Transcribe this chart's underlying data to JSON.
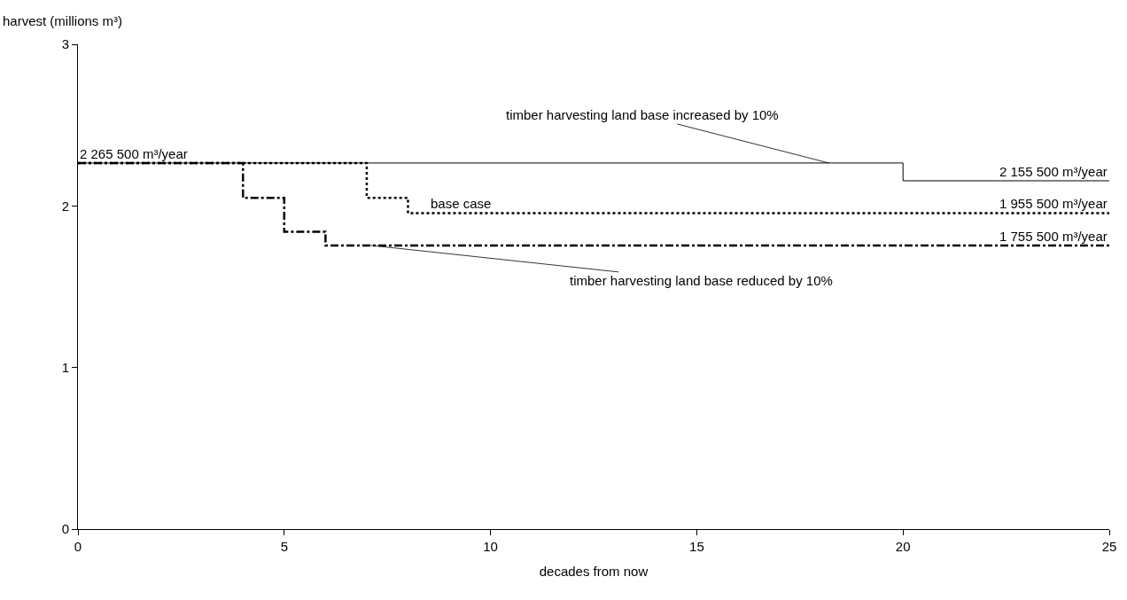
{
  "chart_data": {
    "type": "step",
    "xlabel": "decades from now",
    "ylabel": "harvest (millions m³)",
    "xlim": [
      0,
      25
    ],
    "xticks": [
      0,
      5,
      10,
      15,
      20,
      25
    ],
    "ylim": [
      0,
      3
    ],
    "yticks": [
      0,
      1,
      2,
      3
    ],
    "marker": "none",
    "series": [
      {
        "color": "#000000",
        "line_style": "solid",
        "x": [
          0,
          20,
          25
        ],
        "values": [
          2.2655,
          2.1555,
          2.1555
        ]
      },
      {
        "color": "#000000",
        "line_style": "dotted",
        "x": [
          0,
          7,
          8,
          25
        ],
        "values": [
          2.2655,
          2.05,
          1.9555,
          1.9555
        ]
      },
      {
        "color": "#000000",
        "line_style": "dashdot",
        "x": [
          0,
          4,
          5,
          6,
          25
        ],
        "values": [
          2.2655,
          2.05,
          1.84,
          1.7555,
          1.7555
        ]
      }
    ],
    "annotations": [
      {
        "text": "2 265 500 m³/year",
        "x": 0,
        "y": 2.2655
      },
      {
        "text": "2 155 500 m³/year",
        "x": 25,
        "y": 2.1555
      },
      {
        "text": "1 955 500 m³/year",
        "x": 25,
        "y": 1.9555
      },
      {
        "text": "1 755 500 m³/year",
        "x": 25,
        "y": 1.7555
      },
      {
        "text": "base case",
        "x": 8.5,
        "y": 1.9555
      },
      {
        "text": "timber harvesting land base increased by 10%",
        "x": 18.2,
        "y": 2.2655
      },
      {
        "text": "timber harvesting land base reduced by 10%",
        "x": 7.1,
        "y": 1.7555
      }
    ]
  }
}
